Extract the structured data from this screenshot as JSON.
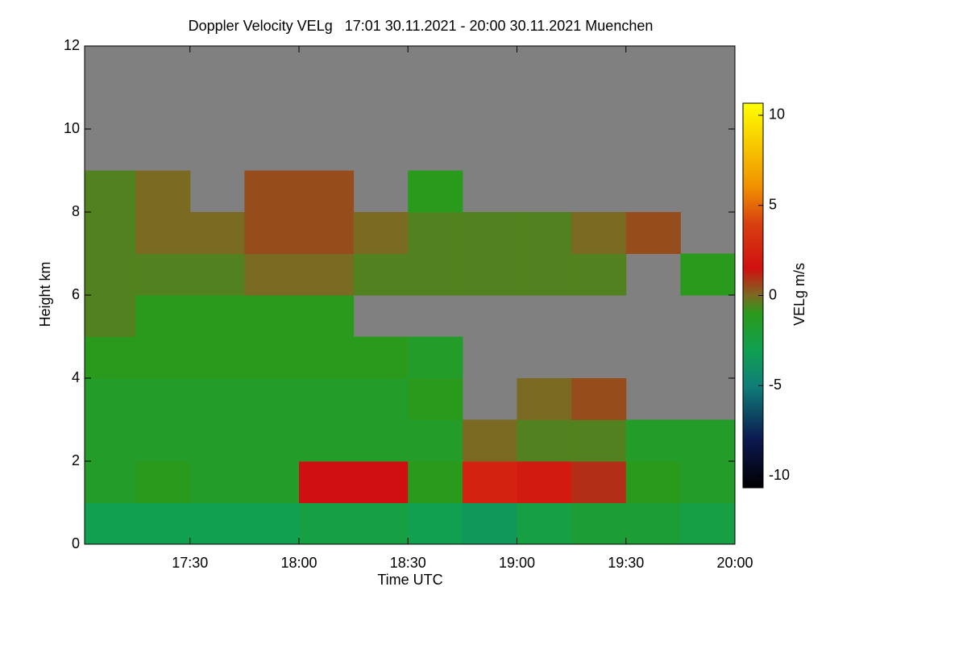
{
  "chart_data": {
    "type": "heatmap",
    "title": "Doppler Velocity VELg   17:01 30.11.2021 - 20:00 30.11.2021 Muenchen",
    "x_label": "Time UTC",
    "y_label": "Height km",
    "colorbar_label": "VELg m/s",
    "x_edges": [
      17.0167,
      17.25,
      17.5,
      17.75,
      18.0,
      18.25,
      18.5,
      18.75,
      19.0,
      19.25,
      19.5,
      19.75,
      20.0
    ],
    "y_edges": [
      0,
      1,
      2,
      3,
      4,
      5,
      6,
      7,
      8,
      9,
      10,
      11,
      12
    ],
    "z": [
      [
        -3,
        -3,
        -3,
        -3,
        -2.5,
        -2.5,
        -3,
        -3.5,
        -2.5,
        -2,
        -2,
        -2.5
      ],
      [
        -1.5,
        -1,
        -1.5,
        -1.5,
        1.5,
        1.5,
        -1,
        2.5,
        2,
        1,
        -1,
        -1.5
      ],
      [
        -1.5,
        -1.5,
        -1.5,
        -1.5,
        -1.5,
        -1.5,
        -1.5,
        0,
        -0.5,
        -0.5,
        -1.5,
        -1.5
      ],
      [
        -1.5,
        -1.5,
        -1.5,
        -1.5,
        -1.5,
        -1.5,
        -1,
        null,
        0,
        0.5,
        null,
        null
      ],
      [
        -1,
        -1,
        -1,
        -1,
        -1,
        -1,
        -1.5,
        null,
        null,
        null,
        null,
        null
      ],
      [
        -0.5,
        -1,
        -1,
        -1,
        -1,
        null,
        null,
        null,
        null,
        null,
        null,
        null
      ],
      [
        -0.5,
        -0.5,
        -0.5,
        0,
        0,
        -0.5,
        -0.5,
        -0.5,
        -0.5,
        -0.5,
        null,
        -1
      ],
      [
        -0.5,
        0,
        0,
        0.5,
        0.5,
        0,
        -0.5,
        -0.5,
        -0.5,
        0,
        0.5,
        null
      ],
      [
        -0.5,
        0,
        null,
        0.5,
        0.5,
        null,
        -1,
        null,
        null,
        null,
        null,
        null
      ],
      [
        null,
        null,
        null,
        null,
        null,
        null,
        null,
        null,
        null,
        null,
        null,
        null
      ],
      [
        null,
        null,
        null,
        null,
        null,
        null,
        null,
        null,
        null,
        null,
        null,
        null
      ],
      [
        null,
        null,
        null,
        null,
        null,
        null,
        null,
        null,
        null,
        null,
        null,
        null
      ]
    ],
    "xlim": [
      17.0167,
      20.0
    ],
    "ylim": [
      0,
      12
    ],
    "clim": [
      -10.67,
      10.67
    ],
    "xticks": [
      {
        "value": 17.5,
        "label": "17:30"
      },
      {
        "value": 18.0,
        "label": "18:00"
      },
      {
        "value": 18.5,
        "label": "18:30"
      },
      {
        "value": 19.0,
        "label": "19:00"
      },
      {
        "value": 19.5,
        "label": "19:30"
      },
      {
        "value": 20.0,
        "label": "20:00"
      }
    ],
    "yticks": [
      0,
      2,
      4,
      6,
      8,
      10,
      12
    ],
    "cticks": [
      -10,
      -5,
      0,
      5,
      10
    ],
    "colorscale": [
      [
        -10.67,
        "#000000"
      ],
      [
        -8,
        "#0c1850"
      ],
      [
        -5,
        "#0f7f78"
      ],
      [
        -3,
        "#10a050"
      ],
      [
        -1,
        "#2a9a1c"
      ],
      [
        0,
        "#7a6a22"
      ],
      [
        1.5,
        "#d01010"
      ],
      [
        4,
        "#d84010"
      ],
      [
        6,
        "#f09000"
      ],
      [
        10.67,
        "#ffff00"
      ]
    ],
    "background_color": "#808080"
  }
}
